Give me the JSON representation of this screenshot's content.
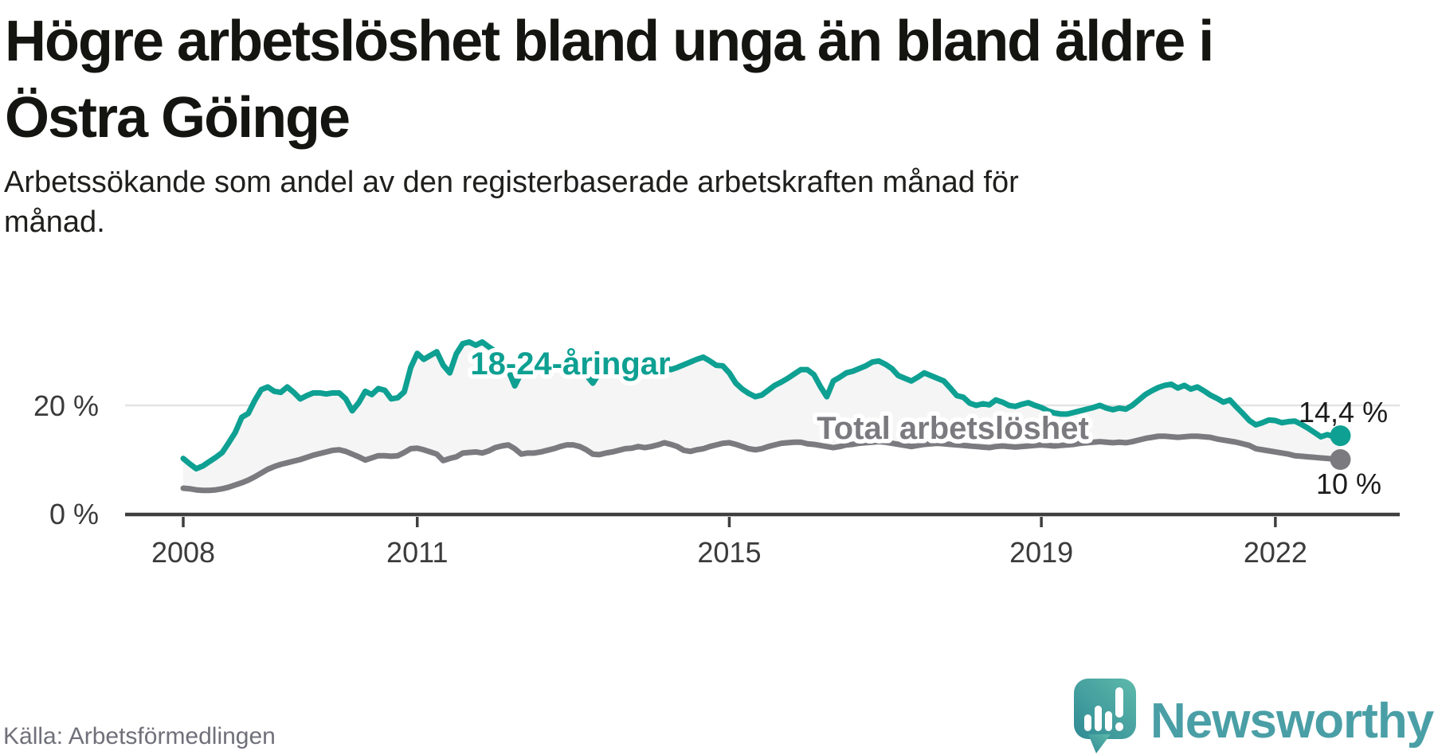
{
  "page": {
    "title_lines": [
      "Högre arbetslöshet bland unga än bland äldre i",
      "Östra Göinge"
    ],
    "subtitle_lines": [
      "Arbetssökande som andel av den registerbaserade arbetskraften månad för",
      "månad."
    ],
    "source": "Källa: Arbetsförmedlingen",
    "brand": {
      "name": "Newsworthy",
      "logo_icon": "speech-bubble-bar-chart-icon",
      "wordmark_color": "#4a9fa6",
      "bubble_gradient": [
        "#2f8a94",
        "#5eb9ab"
      ]
    }
  },
  "chart_data": {
    "type": "line",
    "title": "Högre arbetslöshet bland unga än bland äldre i Östra Göinge",
    "subtitle": "Arbetssökande som andel av den registerbaserade arbetskraften månad för månad.",
    "source": "Källa: Arbetsförmedlingen",
    "x_unit": "month",
    "x_range": [
      "2008-01",
      "2022-11"
    ],
    "x_ticks": [
      {
        "label": "2008",
        "month_index": 0
      },
      {
        "label": "2011",
        "month_index": 36
      },
      {
        "label": "2015",
        "month_index": 84
      },
      {
        "label": "2019",
        "month_index": 132
      },
      {
        "label": "2022",
        "month_index": 168
      }
    ],
    "y_axis": {
      "unit": "%",
      "ticks": [
        {
          "value": 0,
          "label": "0 %"
        },
        {
          "value": 20,
          "label": "20 %"
        }
      ],
      "ylim": [
        0,
        33
      ]
    },
    "legend_position": "inline-labels",
    "grid": "horizontal line at 20% only",
    "style": {
      "fill_between": "#f5f5f5",
      "grid_color": "#e4e4e4",
      "axis_color": "#3f3f3f",
      "tick_text_color": "#3b3b3b",
      "end_label_color": "#1c1c1c"
    },
    "series": [
      {
        "name": "18-24-åringar",
        "color": "#0ea092",
        "end_value_label": "14,4 %",
        "end_value": 14.4,
        "values": [
          10.2,
          9.2,
          8.3,
          8.8,
          9.6,
          10.4,
          11.3,
          13.1,
          15.0,
          17.8,
          18.5,
          20.9,
          22.9,
          23.4,
          22.6,
          22.4,
          23.4,
          22.4,
          21.2,
          21.8,
          22.3,
          22.3,
          22.1,
          22.3,
          22.3,
          21.2,
          19.0,
          20.5,
          22.6,
          22.0,
          23.1,
          22.8,
          21.2,
          21.4,
          22.5,
          27.0,
          29.6,
          28.5,
          29.2,
          29.9,
          27.4,
          26.0,
          29.5,
          31.4,
          31.7,
          31.1,
          31.7,
          30.8,
          30.0,
          29.2,
          26.5,
          23.6,
          26.0,
          27.3,
          28.0,
          28.5,
          28.1,
          27.6,
          27.8,
          28.0,
          28.0,
          27.4,
          25.6,
          24.1,
          26.0,
          27.0,
          27.5,
          27.8,
          27.6,
          27.2,
          27.5,
          27.8,
          28.0,
          27.6,
          27.1,
          26.6,
          27.0,
          27.5,
          28.0,
          28.5,
          28.9,
          28.2,
          27.4,
          27.3,
          26.0,
          24.1,
          23.0,
          22.2,
          21.6,
          21.9,
          22.8,
          23.7,
          24.3,
          25.0,
          25.8,
          26.6,
          26.6,
          25.7,
          23.5,
          21.6,
          24.5,
          25.2,
          26.0,
          26.3,
          26.8,
          27.3,
          28.0,
          28.2,
          27.6,
          26.8,
          25.5,
          25.0,
          24.5,
          25.2,
          26.0,
          25.5,
          25.0,
          24.5,
          23.2,
          21.8,
          21.5,
          20.4,
          20.0,
          20.3,
          20.1,
          21.0,
          20.6,
          20.0,
          19.8,
          20.2,
          20.5,
          20.0,
          19.6,
          19.0,
          18.6,
          18.4,
          18.4,
          18.7,
          19.0,
          19.3,
          19.6,
          20.0,
          19.5,
          19.2,
          19.5,
          19.3,
          20.0,
          21.0,
          22.0,
          22.7,
          23.3,
          23.7,
          23.9,
          23.2,
          23.7,
          23.0,
          23.4,
          22.7,
          21.9,
          21.3,
          20.6,
          21.0,
          19.7,
          18.5,
          17.2,
          16.4,
          16.8,
          17.3,
          17.2,
          16.8,
          17.0,
          17.1,
          16.5,
          15.8,
          15.0,
          14.2,
          14.6,
          14.2,
          14.4
        ]
      },
      {
        "name": "Total arbetslöshet",
        "color": "#7a7a7f",
        "end_value_label": "10 %",
        "end_value": 10.0,
        "values": [
          4.7,
          4.6,
          4.4,
          4.3,
          4.3,
          4.4,
          4.6,
          4.9,
          5.3,
          5.7,
          6.2,
          6.8,
          7.5,
          8.2,
          8.7,
          9.1,
          9.4,
          9.7,
          10.0,
          10.4,
          10.8,
          11.1,
          11.4,
          11.7,
          11.8,
          11.5,
          11.0,
          10.5,
          9.9,
          10.3,
          10.7,
          10.7,
          10.6,
          10.7,
          11.3,
          12.0,
          12.1,
          11.8,
          11.4,
          11.0,
          9.8,
          10.2,
          10.5,
          11.2,
          11.3,
          11.4,
          11.2,
          11.6,
          12.2,
          12.5,
          12.7,
          12.0,
          11.0,
          11.2,
          11.2,
          11.4,
          11.7,
          12.0,
          12.4,
          12.7,
          12.7,
          12.4,
          11.8,
          11.0,
          10.9,
          11.2,
          11.4,
          11.7,
          12.0,
          12.1,
          12.4,
          12.2,
          12.4,
          12.7,
          13.1,
          12.8,
          12.4,
          11.7,
          11.5,
          11.8,
          12.0,
          12.4,
          12.7,
          13.0,
          13.1,
          12.8,
          12.4,
          12.0,
          11.8,
          12.0,
          12.4,
          12.7,
          13.0,
          13.1,
          13.2,
          13.2,
          12.9,
          12.8,
          12.6,
          12.4,
          12.2,
          12.4,
          12.7,
          12.8,
          13.0,
          13.1,
          13.2,
          13.3,
          13.2,
          13.0,
          12.8,
          12.6,
          12.4,
          12.6,
          12.8,
          12.9,
          13.0,
          12.9,
          12.8,
          12.7,
          12.6,
          12.5,
          12.4,
          12.3,
          12.2,
          12.4,
          12.5,
          12.4,
          12.3,
          12.4,
          12.5,
          12.6,
          12.7,
          12.6,
          12.5,
          12.6,
          12.7,
          12.8,
          13.0,
          13.1,
          13.2,
          13.3,
          13.2,
          13.1,
          13.2,
          13.1,
          13.3,
          13.6,
          13.9,
          14.1,
          14.3,
          14.3,
          14.2,
          14.1,
          14.2,
          14.3,
          14.3,
          14.2,
          14.1,
          13.8,
          13.6,
          13.4,
          13.2,
          12.9,
          12.6,
          12.0,
          11.8,
          11.6,
          11.4,
          11.2,
          11.0,
          10.7,
          10.6,
          10.5,
          10.4,
          10.3,
          10.2,
          10.1,
          10.0
        ]
      }
    ]
  }
}
